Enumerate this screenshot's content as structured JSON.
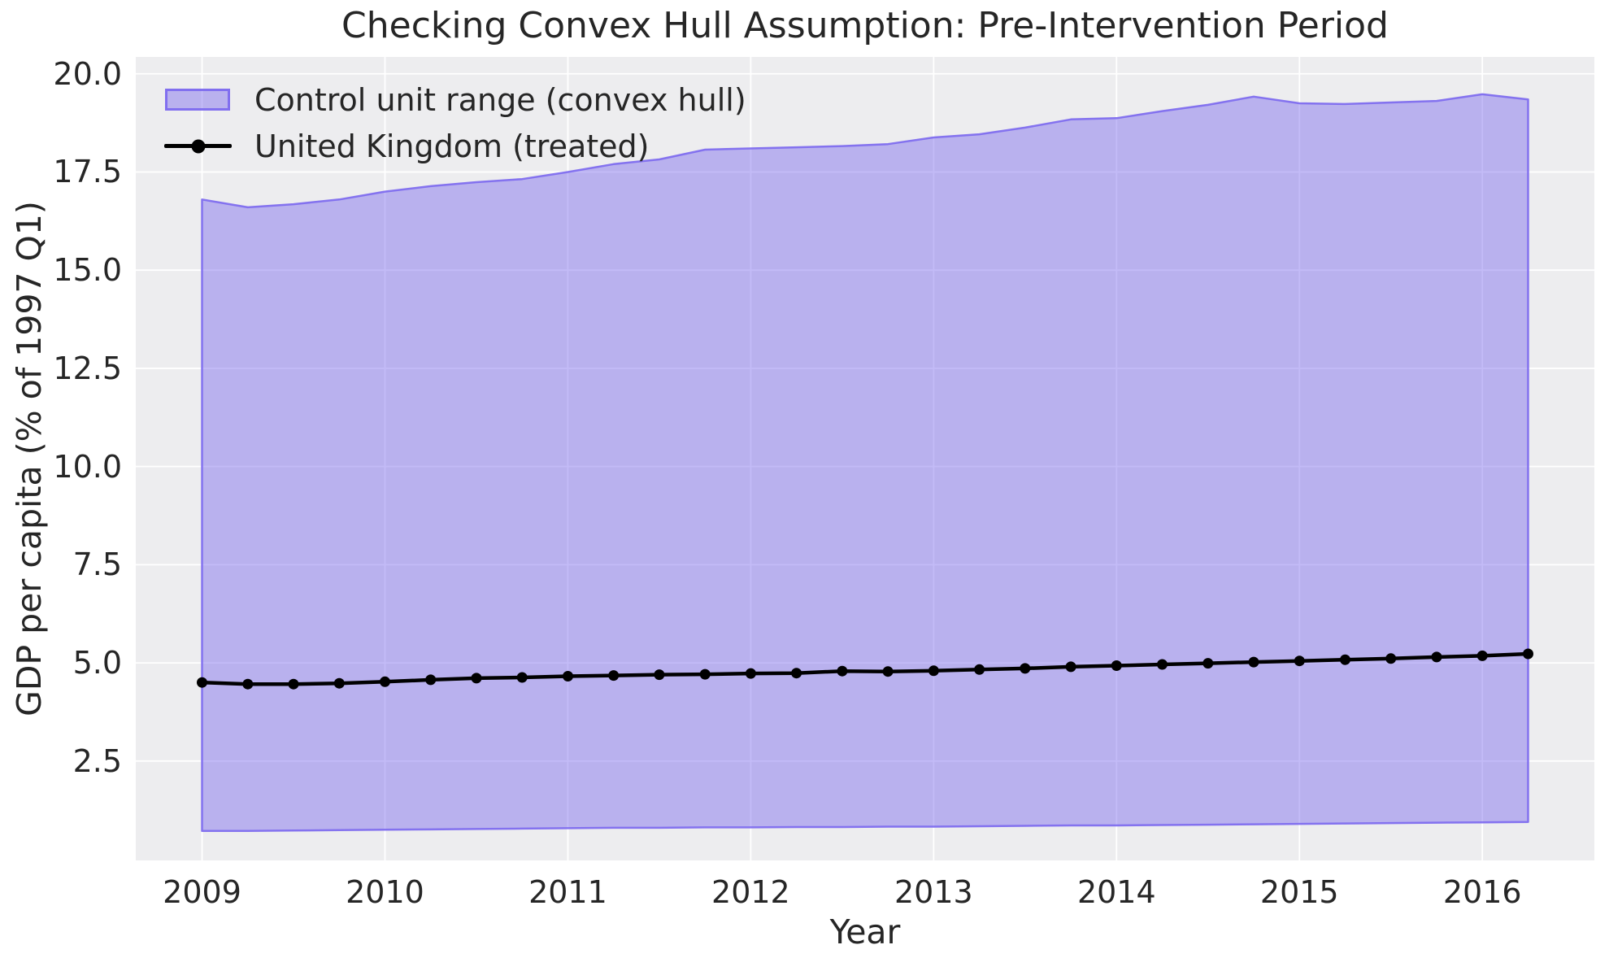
{
  "chart_data": {
    "type": "area",
    "title": "Checking Convex Hull Assumption: Pre-Intervention Period",
    "xlabel": "Year",
    "ylabel": "GDP per capita (% of 1997 Q1)",
    "x": [
      2009.0,
      2009.25,
      2009.5,
      2009.75,
      2010.0,
      2010.25,
      2010.5,
      2010.75,
      2011.0,
      2011.25,
      2011.5,
      2011.75,
      2012.0,
      2012.25,
      2012.5,
      2012.75,
      2013.0,
      2013.25,
      2013.5,
      2013.75,
      2014.0,
      2014.25,
      2014.5,
      2014.75,
      2015.0,
      2015.25,
      2015.5,
      2015.75,
      2016.0,
      2016.25
    ],
    "series": [
      {
        "name": "Control unit range (convex hull)",
        "kind": "band",
        "upper": [
          16.8,
          16.6,
          16.68,
          16.8,
          17.0,
          17.14,
          17.24,
          17.32,
          17.5,
          17.7,
          17.82,
          18.07,
          18.1,
          18.13,
          18.16,
          18.21,
          18.38,
          18.46,
          18.63,
          18.84,
          18.87,
          19.05,
          19.21,
          19.42,
          19.25,
          19.23,
          19.27,
          19.31,
          19.48,
          19.35
        ],
        "lower": [
          0.72,
          0.72,
          0.73,
          0.74,
          0.75,
          0.76,
          0.77,
          0.78,
          0.79,
          0.8,
          0.8,
          0.81,
          0.81,
          0.82,
          0.82,
          0.83,
          0.83,
          0.84,
          0.85,
          0.86,
          0.86,
          0.87,
          0.88,
          0.89,
          0.9,
          0.91,
          0.92,
          0.93,
          0.94,
          0.95
        ],
        "fill_color": "rgba(123,104,238,0.45)",
        "edge_color": "rgba(123,104,238,0.9)"
      },
      {
        "name": "United Kingdom (treated)",
        "kind": "line",
        "values": [
          4.5,
          4.46,
          4.46,
          4.48,
          4.52,
          4.57,
          4.61,
          4.63,
          4.66,
          4.68,
          4.7,
          4.71,
          4.73,
          4.74,
          4.79,
          4.78,
          4.8,
          4.83,
          4.86,
          4.9,
          4.93,
          4.96,
          4.99,
          5.02,
          5.05,
          5.08,
          5.11,
          5.15,
          5.18,
          5.23
        ],
        "color": "#000000",
        "marker": "circle"
      }
    ],
    "xlim": [
      2008.6375,
      2016.6125
    ],
    "ylim": [
      -0.03,
      20.43
    ],
    "xticks": [
      2009,
      2010,
      2011,
      2012,
      2013,
      2014,
      2015,
      2016
    ],
    "xtick_labels": [
      "2009",
      "2010",
      "2011",
      "2012",
      "2013",
      "2014",
      "2015",
      "2016"
    ],
    "yticks": [
      2.5,
      5.0,
      7.5,
      10.0,
      12.5,
      15.0,
      17.5,
      20.0
    ],
    "ytick_labels": [
      "2.5",
      "5.0",
      "7.5",
      "10.0",
      "12.5",
      "15.0",
      "17.5",
      "20.0"
    ],
    "grid": true,
    "legend_position": "upper left",
    "colors": {
      "axes_background": "#ededef",
      "gridline": "#ffffff",
      "text": "#262626"
    }
  }
}
